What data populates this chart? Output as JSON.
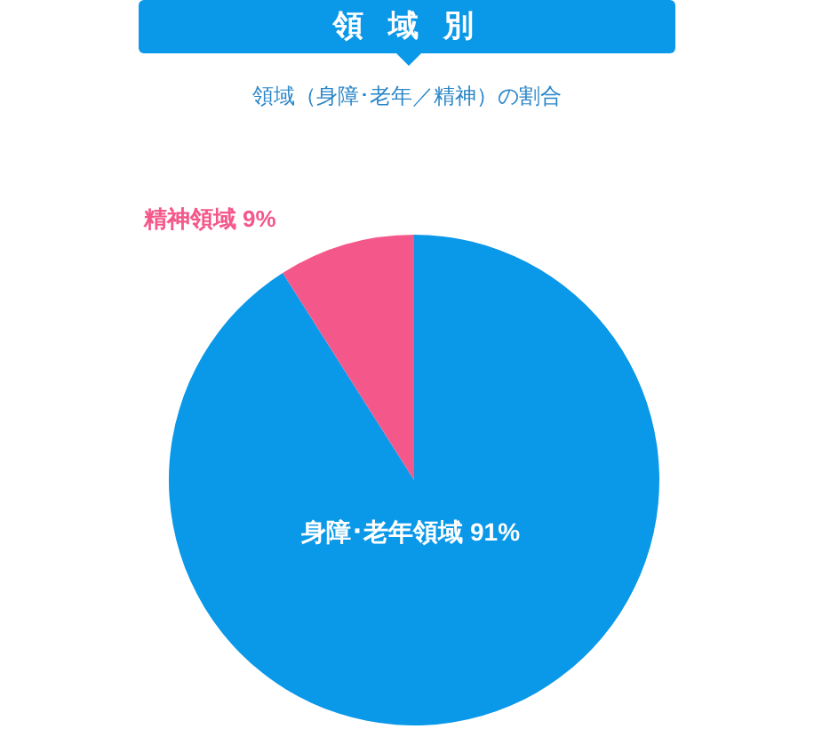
{
  "chart_data": {
    "type": "pie",
    "title": "領 域 別",
    "subtitle": "領域（身障･老年／精神）の割合",
    "categories": [
      "身障･老年領域",
      "精神領域"
    ],
    "values": [
      91,
      9
    ],
    "colors": [
      "#0a98e8",
      "#f4588b"
    ],
    "value_labels": [
      "91%",
      "9%"
    ],
    "legend": false
  }
}
